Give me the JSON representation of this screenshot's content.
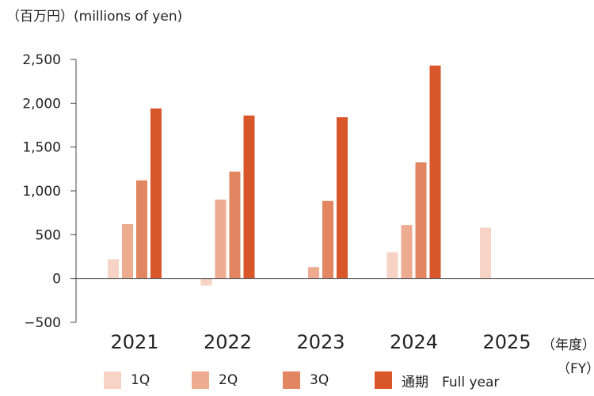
{
  "chart_data": {
    "type": "bar",
    "unit_label": "（百万円）(millions of yen)",
    "fy_label_1": "（年度）",
    "fy_label_2": "（FY）",
    "categories": [
      "2021",
      "2022",
      "2023",
      "2024",
      "2025"
    ],
    "series": [
      {
        "name": "1Q",
        "color": "#f6d3c5",
        "values": [
          220,
          -80,
          null,
          300,
          580
        ]
      },
      {
        "name": "2Q",
        "color": "#edab8f",
        "values": [
          620,
          900,
          130,
          610,
          null
        ]
      },
      {
        "name": "3Q",
        "color": "#e28561",
        "values": [
          1120,
          1220,
          885,
          1325,
          null
        ]
      },
      {
        "name": "通期　Full year",
        "color": "#d9562a",
        "values": [
          1940,
          1860,
          1840,
          2430,
          null
        ]
      }
    ],
    "yticks": [
      "2,500",
      "2,000",
      "1,500",
      "1,000",
      "500",
      "0",
      "−500"
    ],
    "ytick_values": [
      2500,
      2000,
      1500,
      1000,
      500,
      0,
      -500
    ],
    "ylim": [
      -500,
      2500
    ],
    "grid": false
  }
}
